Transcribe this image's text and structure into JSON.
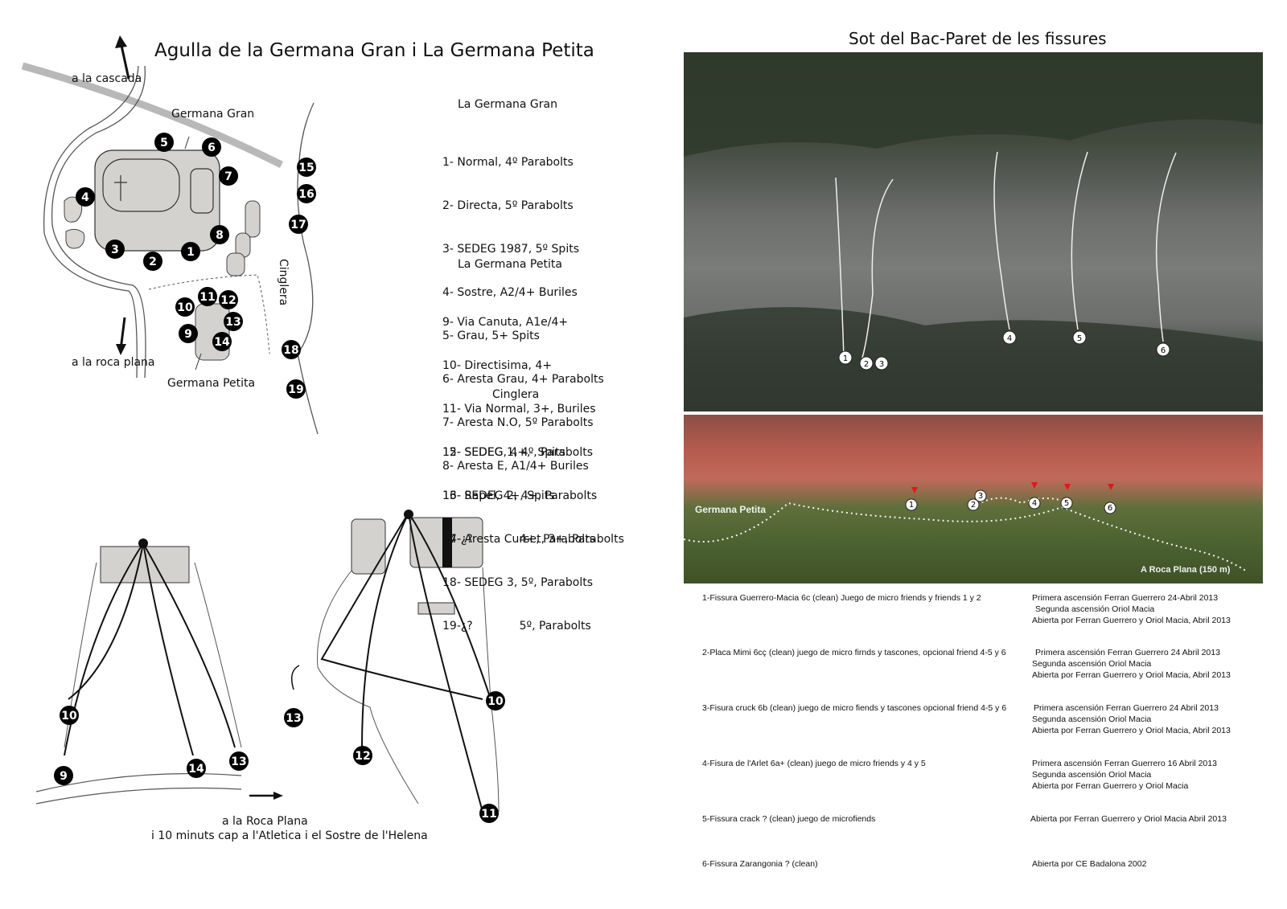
{
  "left": {
    "title": "Agulla de la Germana Gran i La Germana Petita",
    "map_labels": {
      "cascada": "a la cascada",
      "germana_gran": "Germana Gran",
      "roca_plana": "a la roca plana",
      "germana_petita": "Germana Petita",
      "cinglera": "Cinglera"
    },
    "sections": [
      {
        "heading": "La Germana Gran",
        "routes": [
          "1- Normal, 4º Parabolts",
          "2- Directa, 5º Parabolts",
          "3- SEDEG 1987, 5º Spits",
          "4- Sostre, A2/4+ Buriles",
          "5- Grau, 5+ Spits",
          "6- Aresta Grau, 4+ Parabolts",
          "7- Aresta N.O, 5º Parabolts",
          "8- Aresta E, A1/4+ Buriles"
        ]
      },
      {
        "heading": "La Germana Petita",
        "routes": [
          "9- Via Canuta, A1e/4+",
          "10- Directisima, 4+",
          "11- Via Normal, 3+, Buriles",
          "12- SEDEG, 4+,  Spits",
          "13- Rapel, 4+, Spits",
          "14- Aresta Curset, 3+, Parabolts"
        ]
      },
      {
        "heading": "Cinglera",
        "routes": [
          "15- SEDEG 1, 4º, Parabolts",
          "16- SEDEG 2, 4+, Parabolts",
          "17-¿?             4+, Parabolts",
          "18- SEDEG 3, 5º, Parabolts",
          "19-¿?             5º, Parabolts"
        ]
      }
    ],
    "footer_line1": "a la Roca Plana",
    "footer_line2": "i 10 minuts cap a l'Atletica i el Sostre de l'Helena"
  },
  "right": {
    "title": "Sot del Bac-Paret de les fissures",
    "photo_labels": {
      "germana_petita": "Germana Petita",
      "roca_plana": "A Roca Plana (150 m)"
    },
    "captions": [
      {
        "route": "1-Fissura Guerrero-Macia 6c (clean) Juego de micro friends y friends 1 y 2",
        "notes": [
          "Primera ascensión Ferran Guerrero 24-Abril 2013",
          "Segunda ascensión Oriol Macia",
          "Abierta por Ferran Guerrero y Oriol Macia, Abril 2013"
        ]
      },
      {
        "route": "2-Placa Mimi 6cç (clean) juego de micro firnds y tascones, opcional friend 4-5 y 6",
        "notes": [
          "Primera ascensión Ferran Guerrero 24 Abril 2013",
          "Segunda ascensión Oriol Macia",
          "Abierta por Ferran Guerrero y Oriol Macia, Abril 2013"
        ]
      },
      {
        "route": "3-Fisura cruck 6b (clean) juego de micro fiends y tascones opcional friend 4-5 y 6",
        "notes": [
          "Primera ascensión Ferran Guerrero 24 Abril 2013",
          "Segunda ascensión Oriol Macia",
          "Abierta por Ferran Guerrero y Oriol Macia, Abril 2013"
        ]
      },
      {
        "route": "4-Fisura de l'Arlet 6a+ (clean) juego de micro friends y 4 y 5",
        "notes": [
          "Primera ascensión Ferran Guerrero 16 Abril 2013",
          "Segunda ascensión Oriol Macia",
          "Abierta por Ferran Guerrero y Oriol Macia"
        ]
      },
      {
        "route": "5-Fissura crack ? (clean) juego de microfiends",
        "notes": [
          "Abierta por Ferran Guerrero y Oriol Macia Abril 2013"
        ]
      },
      {
        "route": "6-Fissura Zarangonia  ? (clean)",
        "notes": [
          "Abierta por CE Badalona 2002"
        ]
      }
    ]
  },
  "markers": {
    "map": [
      "1",
      "2",
      "3",
      "4",
      "5",
      "6",
      "7",
      "8",
      "9",
      "10",
      "11",
      "12",
      "13",
      "14",
      "15",
      "16",
      "17",
      "18",
      "19"
    ],
    "photo": [
      "1",
      "2",
      "3",
      "4",
      "5",
      "6"
    ]
  }
}
